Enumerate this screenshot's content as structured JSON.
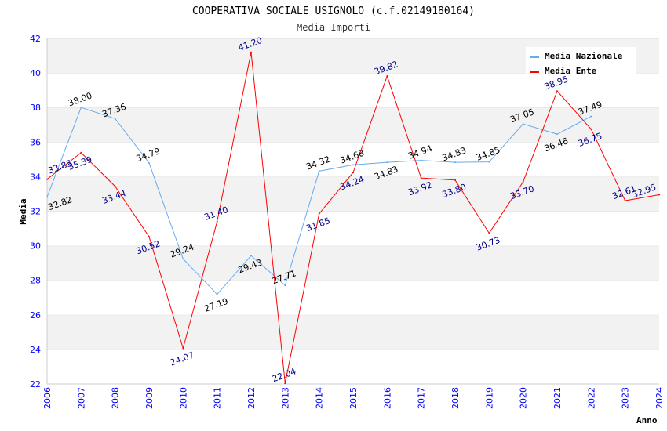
{
  "chart_data": {
    "type": "line",
    "title": "COOPERATIVA SOCIALE USIGNOLO (c.f.02149180164)",
    "subtitle": "Media Importi",
    "xlabel": "Anno",
    "ylabel": "Media",
    "ylim": [
      22,
      42
    ],
    "yticks": [
      22,
      24,
      26,
      28,
      30,
      32,
      34,
      36,
      38,
      40,
      42
    ],
    "x": [
      2006,
      2007,
      2008,
      2009,
      2010,
      2011,
      2012,
      2013,
      2014,
      2015,
      2016,
      2017,
      2018,
      2019,
      2020,
      2021,
      2022,
      2023,
      2024
    ],
    "grid": true,
    "legend_position": "top-right",
    "series": [
      {
        "name": "Media Nazionale",
        "color": "#66aaee",
        "label_color": "#000000",
        "values": [
          32.82,
          38.0,
          37.36,
          34.79,
          29.24,
          27.19,
          29.43,
          27.71,
          34.32,
          34.68,
          34.83,
          34.94,
          34.83,
          34.85,
          37.05,
          36.46,
          37.49,
          null,
          null
        ]
      },
      {
        "name": "Media Ente",
        "color": "#ff0000",
        "label_color": "#00008b",
        "values": [
          33.85,
          35.39,
          33.44,
          30.52,
          24.07,
          31.4,
          41.2,
          22.04,
          31.85,
          34.24,
          39.82,
          33.92,
          33.8,
          30.73,
          33.7,
          38.95,
          36.75,
          32.61,
          32.95
        ]
      }
    ]
  }
}
